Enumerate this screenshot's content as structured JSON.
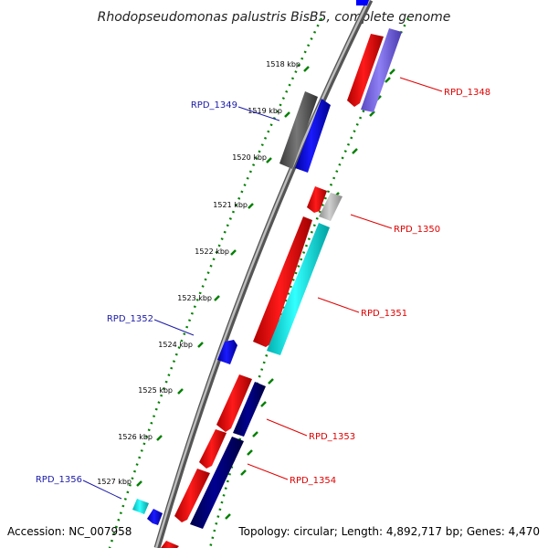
{
  "title": "Rhodopseudomonas palustris BisB5, complete genome",
  "footer": {
    "accession": "Accession: NC_007958",
    "topology": "Topology: circular; Length: 4,892,717 bp; Genes: 4,470"
  },
  "ticks": [
    "1518 kbp",
    "1519 kbp",
    "1520 kbp",
    "1521 kbp",
    "1522 kbp",
    "1523 kbp",
    "1524 kbp",
    "1525 kbp",
    "1526 kbp",
    "1527 kbp"
  ],
  "gene_labels": [
    "RPD_1348",
    "RPD_1349",
    "RPD_1350",
    "RPD_1351",
    "RPD_1352",
    "RPD_1353",
    "RPD_1354",
    "RPD_1356"
  ],
  "colors": {
    "red": "#ff0000",
    "blue": "#0000ff",
    "navy": "#000080",
    "cyan": "#00ffff",
    "purple": "#7b68ee",
    "gray": "#555555",
    "light_gray": "#b0b0b0",
    "tick_green": "#008000",
    "label_red": "#e00000",
    "label_blue": "#1a1aa8"
  }
}
